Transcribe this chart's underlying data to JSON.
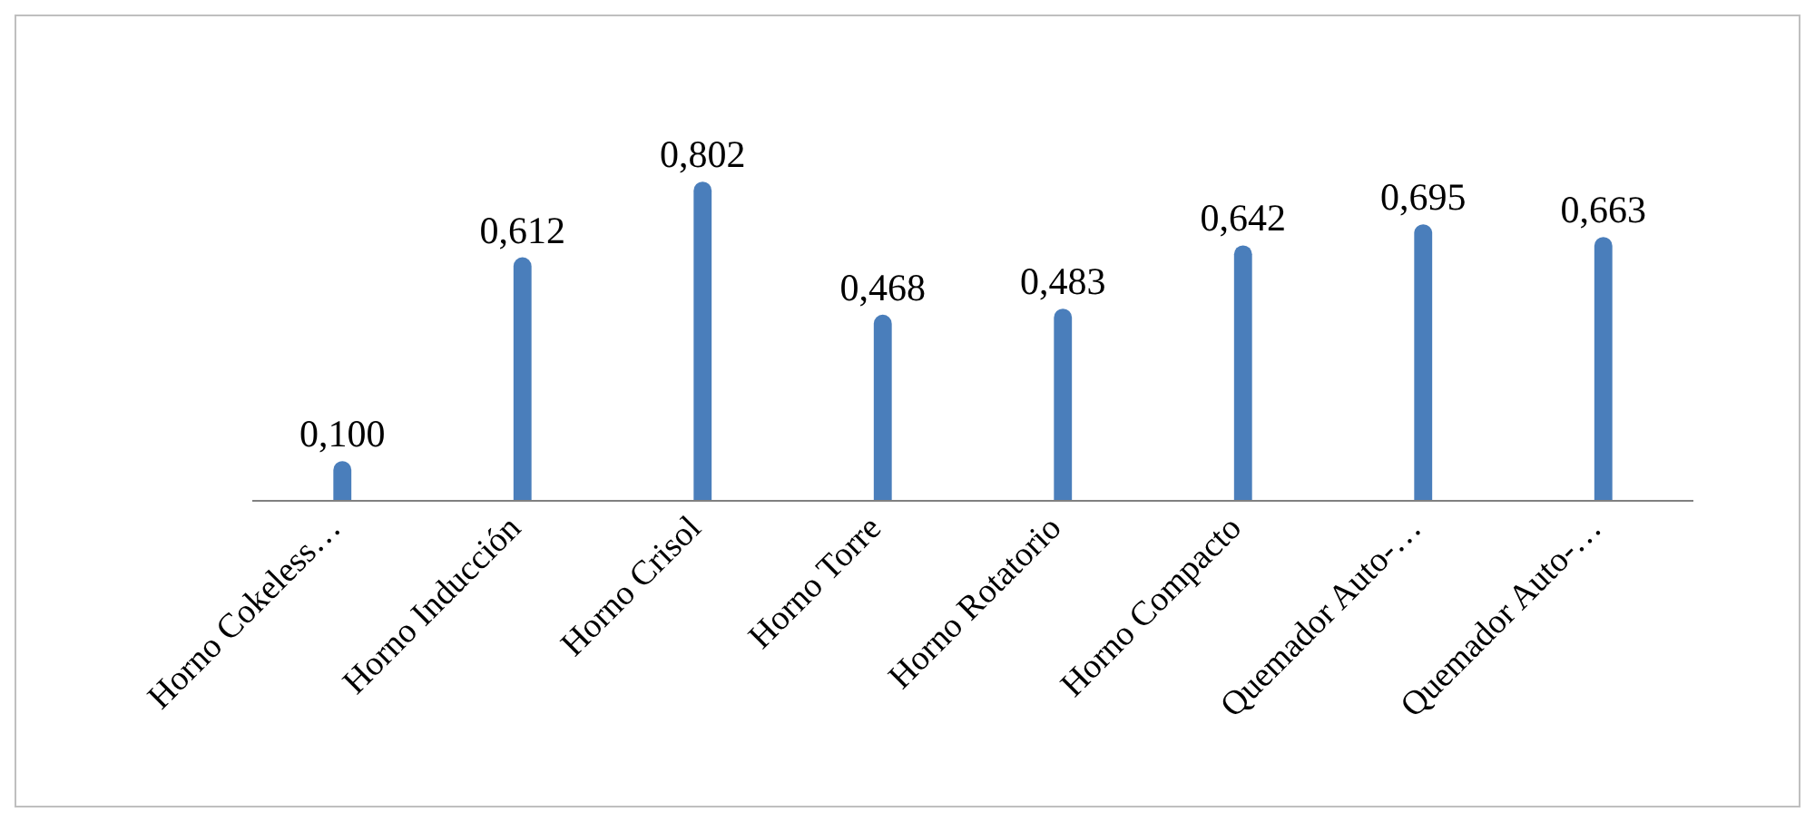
{
  "chart_data": {
    "type": "bar",
    "categories": [
      "Horno Cokeless…",
      "Horno Inducción",
      "Horno Crisol",
      "Horno Torre",
      "Horno Rotatorio",
      "Horno Compacto",
      "Quemador Auto-…",
      "Quemador Auto-…"
    ],
    "values": [
      0.1,
      0.612,
      0.802,
      0.468,
      0.483,
      0.642,
      0.695,
      0.663
    ],
    "value_labels": [
      "0,100",
      "0,612",
      "0,802",
      "0,468",
      "0,483",
      "0,642",
      "0,695",
      "0,663"
    ],
    "color": "#4a7ebb"
  }
}
